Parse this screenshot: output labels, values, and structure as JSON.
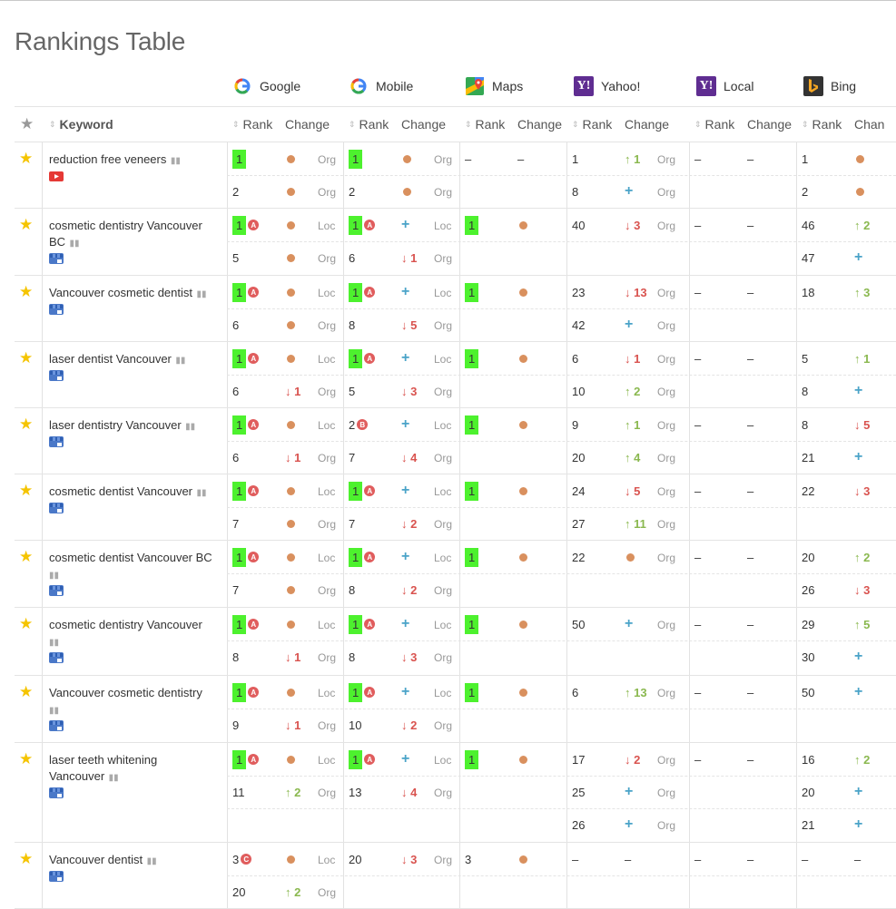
{
  "page": {
    "title": "Rankings Table"
  },
  "engines": [
    {
      "name": "Google",
      "icon": "google-icon"
    },
    {
      "name": "Mobile",
      "icon": "google-icon"
    },
    {
      "name": "Maps",
      "icon": "maps-icon"
    },
    {
      "name": "Yahoo!",
      "icon": "yahoo-icon"
    },
    {
      "name": "Local",
      "icon": "yahoo-icon"
    },
    {
      "name": "Bing",
      "icon": "bing-icon"
    }
  ],
  "headers": {
    "keyword": "Keyword",
    "rank": "Rank",
    "change": "Change",
    "change_truncated": "Chan"
  },
  "colors": {
    "highlight": "#4df12e",
    "star": "#f5c400",
    "up": "#8ab84f",
    "down": "#d9534f",
    "new": "#4aa3c8",
    "nochange": "#d9905e"
  },
  "keywords": [
    {
      "keyword": "reduction free veneers",
      "source": "youtube-icon",
      "lines": [
        {
          "g": {
            "r": "1",
            "hl": true,
            "ch": "dot",
            "t": "Org"
          },
          "m": {
            "r": "1",
            "hl": true,
            "ch": "dot",
            "t": "Org"
          },
          "maps": {
            "r": "–",
            "ch": "–"
          },
          "y": {
            "r": "1",
            "ch": "up:1",
            "t": "Org"
          },
          "l": {
            "r": "–",
            "ch": "–"
          },
          "b": {
            "r": "1",
            "ch": "dot"
          }
        },
        {
          "g": {
            "r": "2",
            "ch": "dot",
            "t": "Org"
          },
          "m": {
            "r": "2",
            "ch": "dot",
            "t": "Org"
          },
          "y": {
            "r": "8",
            "ch": "plus",
            "t": "Org"
          },
          "b": {
            "r": "2",
            "ch": "dot"
          }
        }
      ]
    },
    {
      "keyword": "cosmetic dentistry Vancouver BC",
      "source": "gmb-icon",
      "lines": [
        {
          "g": {
            "r": "1",
            "hl": true,
            "bd": "A",
            "ch": "dot",
            "t": "Loc"
          },
          "m": {
            "r": "1",
            "hl": true,
            "bd": "A",
            "ch": "plus",
            "t": "Loc"
          },
          "maps": {
            "r": "1",
            "hl": true,
            "ch": "dot"
          },
          "y": {
            "r": "40",
            "ch": "down:3",
            "t": "Org"
          },
          "l": {
            "r": "–",
            "ch": "–"
          },
          "b": {
            "r": "46",
            "ch": "up:2"
          }
        },
        {
          "g": {
            "r": "5",
            "ch": "dot",
            "t": "Org"
          },
          "m": {
            "r": "6",
            "ch": "down:1",
            "t": "Org"
          },
          "b": {
            "r": "47",
            "ch": "plus"
          }
        }
      ]
    },
    {
      "keyword": "Vancouver cosmetic dentist",
      "source": "gmb-icon",
      "lines": [
        {
          "g": {
            "r": "1",
            "hl": true,
            "bd": "A",
            "ch": "dot",
            "t": "Loc"
          },
          "m": {
            "r": "1",
            "hl": true,
            "bd": "A",
            "ch": "plus",
            "t": "Loc"
          },
          "maps": {
            "r": "1",
            "hl": true,
            "ch": "dot"
          },
          "y": {
            "r": "23",
            "ch": "down:13",
            "t": "Org"
          },
          "l": {
            "r": "–",
            "ch": "–"
          },
          "b": {
            "r": "18",
            "ch": "up:3"
          }
        },
        {
          "g": {
            "r": "6",
            "ch": "dot",
            "t": "Org"
          },
          "m": {
            "r": "8",
            "ch": "down:5",
            "t": "Org"
          },
          "y": {
            "r": "42",
            "ch": "plus",
            "t": "Org"
          }
        }
      ]
    },
    {
      "keyword": "laser dentist Vancouver",
      "source": "gmb-icon",
      "lines": [
        {
          "g": {
            "r": "1",
            "hl": true,
            "bd": "A",
            "ch": "dot",
            "t": "Loc"
          },
          "m": {
            "r": "1",
            "hl": true,
            "bd": "A",
            "ch": "plus",
            "t": "Loc"
          },
          "maps": {
            "r": "1",
            "hl": true,
            "ch": "dot"
          },
          "y": {
            "r": "6",
            "ch": "down:1",
            "t": "Org"
          },
          "l": {
            "r": "–",
            "ch": "–"
          },
          "b": {
            "r": "5",
            "ch": "up:1"
          }
        },
        {
          "g": {
            "r": "6",
            "ch": "down:1",
            "t": "Org"
          },
          "m": {
            "r": "5",
            "ch": "down:3",
            "t": "Org"
          },
          "y": {
            "r": "10",
            "ch": "up:2",
            "t": "Org"
          },
          "b": {
            "r": "8",
            "ch": "plus"
          }
        }
      ]
    },
    {
      "keyword": "laser dentistry Vancouver",
      "source": "gmb-icon",
      "lines": [
        {
          "g": {
            "r": "1",
            "hl": true,
            "bd": "A",
            "ch": "dot",
            "t": "Loc"
          },
          "m": {
            "r": "2",
            "bd": "B",
            "ch": "plus",
            "t": "Loc"
          },
          "maps": {
            "r": "1",
            "hl": true,
            "ch": "dot"
          },
          "y": {
            "r": "9",
            "ch": "up:1",
            "t": "Org"
          },
          "l": {
            "r": "–",
            "ch": "–"
          },
          "b": {
            "r": "8",
            "ch": "down:5"
          }
        },
        {
          "g": {
            "r": "6",
            "ch": "down:1",
            "t": "Org"
          },
          "m": {
            "r": "7",
            "ch": "down:4",
            "t": "Org"
          },
          "y": {
            "r": "20",
            "ch": "up:4",
            "t": "Org"
          },
          "b": {
            "r": "21",
            "ch": "plus"
          }
        }
      ]
    },
    {
      "keyword": "cosmetic dentist Vancouver",
      "source": "gmb-icon",
      "lines": [
        {
          "g": {
            "r": "1",
            "hl": true,
            "bd": "A",
            "ch": "dot",
            "t": "Loc"
          },
          "m": {
            "r": "1",
            "hl": true,
            "bd": "A",
            "ch": "plus",
            "t": "Loc"
          },
          "maps": {
            "r": "1",
            "hl": true,
            "ch": "dot"
          },
          "y": {
            "r": "24",
            "ch": "down:5",
            "t": "Org"
          },
          "l": {
            "r": "–",
            "ch": "–"
          },
          "b": {
            "r": "22",
            "ch": "down:3"
          }
        },
        {
          "g": {
            "r": "7",
            "ch": "dot",
            "t": "Org"
          },
          "m": {
            "r": "7",
            "ch": "down:2",
            "t": "Org"
          },
          "y": {
            "r": "27",
            "ch": "up:11",
            "t": "Org"
          }
        }
      ]
    },
    {
      "keyword": "cosmetic dentist Vancouver BC",
      "source": "gmb-icon",
      "lines": [
        {
          "g": {
            "r": "1",
            "hl": true,
            "bd": "A",
            "ch": "dot",
            "t": "Loc"
          },
          "m": {
            "r": "1",
            "hl": true,
            "bd": "A",
            "ch": "plus",
            "t": "Loc"
          },
          "maps": {
            "r": "1",
            "hl": true,
            "ch": "dot"
          },
          "y": {
            "r": "22",
            "ch": "dot",
            "t": "Org"
          },
          "l": {
            "r": "–",
            "ch": "–"
          },
          "b": {
            "r": "20",
            "ch": "up:2"
          }
        },
        {
          "g": {
            "r": "7",
            "ch": "dot",
            "t": "Org"
          },
          "m": {
            "r": "8",
            "ch": "down:2",
            "t": "Org"
          },
          "b": {
            "r": "26",
            "ch": "down:3"
          }
        }
      ]
    },
    {
      "keyword": "cosmetic dentistry Vancouver",
      "source": "gmb-icon",
      "lines": [
        {
          "g": {
            "r": "1",
            "hl": true,
            "bd": "A",
            "ch": "dot",
            "t": "Loc"
          },
          "m": {
            "r": "1",
            "hl": true,
            "bd": "A",
            "ch": "plus",
            "t": "Loc"
          },
          "maps": {
            "r": "1",
            "hl": true,
            "ch": "dot"
          },
          "y": {
            "r": "50",
            "ch": "plus",
            "t": "Org"
          },
          "l": {
            "r": "–",
            "ch": "–"
          },
          "b": {
            "r": "29",
            "ch": "up:5"
          }
        },
        {
          "g": {
            "r": "8",
            "ch": "down:1",
            "t": "Org"
          },
          "m": {
            "r": "8",
            "ch": "down:3",
            "t": "Org"
          },
          "b": {
            "r": "30",
            "ch": "plus"
          }
        }
      ]
    },
    {
      "keyword": "Vancouver cosmetic dentistry",
      "source": "gmb-icon",
      "lines": [
        {
          "g": {
            "r": "1",
            "hl": true,
            "bd": "A",
            "ch": "dot",
            "t": "Loc"
          },
          "m": {
            "r": "1",
            "hl": true,
            "bd": "A",
            "ch": "plus",
            "t": "Loc"
          },
          "maps": {
            "r": "1",
            "hl": true,
            "ch": "dot"
          },
          "y": {
            "r": "6",
            "ch": "up:13",
            "t": "Org"
          },
          "l": {
            "r": "–",
            "ch": "–"
          },
          "b": {
            "r": "50",
            "ch": "plus"
          }
        },
        {
          "g": {
            "r": "9",
            "ch": "down:1",
            "t": "Org"
          },
          "m": {
            "r": "10",
            "ch": "down:2",
            "t": "Org"
          }
        }
      ]
    },
    {
      "keyword": "laser teeth whitening Vancouver",
      "source": "gmb-icon",
      "lines": [
        {
          "g": {
            "r": "1",
            "hl": true,
            "bd": "A",
            "ch": "dot",
            "t": "Loc"
          },
          "m": {
            "r": "1",
            "hl": true,
            "bd": "A",
            "ch": "plus",
            "t": "Loc"
          },
          "maps": {
            "r": "1",
            "hl": true,
            "ch": "dot"
          },
          "y": {
            "r": "17",
            "ch": "down:2",
            "t": "Org"
          },
          "l": {
            "r": "–",
            "ch": "–"
          },
          "b": {
            "r": "16",
            "ch": "up:2"
          }
        },
        {
          "g": {
            "r": "11",
            "ch": "up:2",
            "t": "Org"
          },
          "m": {
            "r": "13",
            "ch": "down:4",
            "t": "Org"
          },
          "y": {
            "r": "25",
            "ch": "plus",
            "t": "Org"
          },
          "b": {
            "r": "20",
            "ch": "plus"
          }
        },
        {
          "y": {
            "r": "26",
            "ch": "plus",
            "t": "Org"
          },
          "b": {
            "r": "21",
            "ch": "plus"
          }
        }
      ]
    },
    {
      "keyword": "Vancouver dentist",
      "source": "gmb-icon",
      "lines": [
        {
          "g": {
            "r": "3",
            "bd": "C",
            "ch": "dot",
            "t": "Loc"
          },
          "m": {
            "r": "20",
            "ch": "down:3",
            "t": "Org"
          },
          "maps": {
            "r": "3",
            "ch": "dot"
          },
          "y": {
            "r": "–",
            "ch": "–"
          },
          "l": {
            "r": "–",
            "ch": "–"
          },
          "b": {
            "r": "–",
            "ch": "–"
          }
        },
        {
          "g": {
            "r": "20",
            "ch": "up:2",
            "t": "Org"
          }
        }
      ]
    }
  ]
}
